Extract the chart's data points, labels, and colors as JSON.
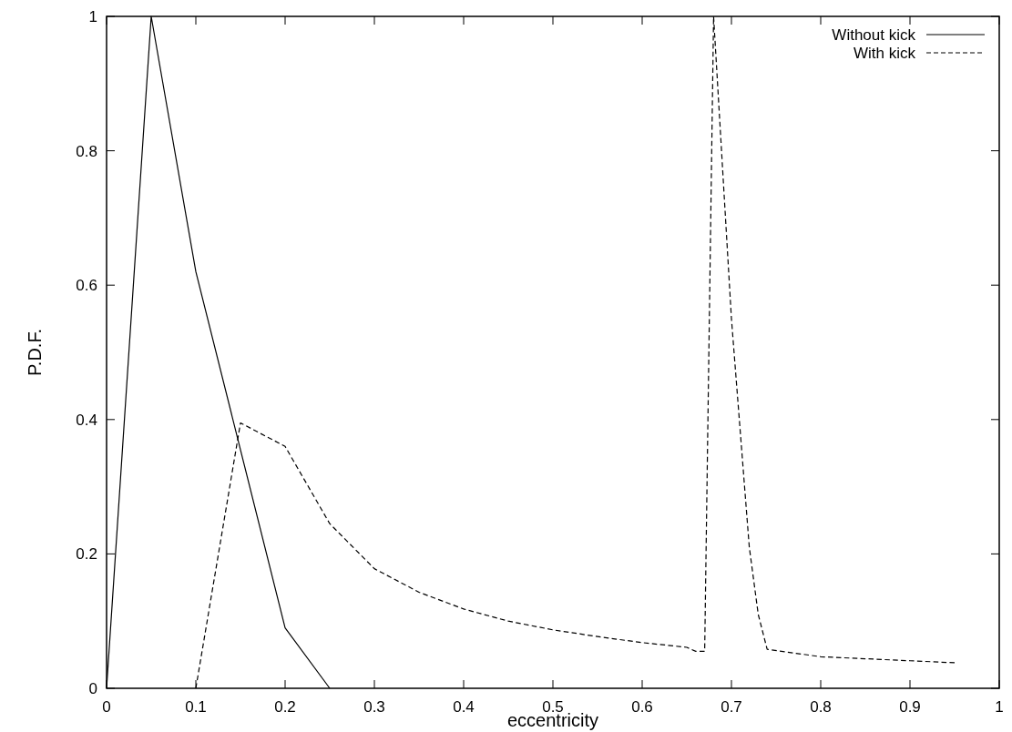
{
  "chart_data": {
    "type": "line",
    "xlabel": "eccentricity",
    "ylabel": "P.D.F.",
    "xlim": [
      0,
      1
    ],
    "ylim": [
      0,
      1
    ],
    "xticks": [
      0,
      0.1,
      0.2,
      0.3,
      0.4,
      0.5,
      0.6,
      0.7,
      0.8,
      0.9,
      1
    ],
    "yticks": [
      0,
      0.2,
      0.4,
      0.6,
      0.8,
      1
    ],
    "grid": false,
    "legend": "top right",
    "series": [
      {
        "name": "Without kick",
        "color": "#000000",
        "line_style": "solid",
        "x": [
          0,
          0.05,
          0.1,
          0.2,
          0.25
        ],
        "values": [
          0,
          1,
          0.62,
          0.09,
          0
        ]
      },
      {
        "name": "With kick",
        "color": "#000000",
        "line_style": "dashed",
        "x": [
          0.1,
          0.15,
          0.2,
          0.25,
          0.3,
          0.35,
          0.4,
          0.45,
          0.5,
          0.55,
          0.6,
          0.65,
          0.66,
          0.67,
          0.68,
          0.7,
          0.72,
          0.73,
          0.74,
          0.8,
          0.85,
          0.9,
          0.95
        ],
        "values": [
          0,
          0.395,
          0.36,
          0.245,
          0.178,
          0.143,
          0.118,
          0.1,
          0.087,
          0.077,
          0.068,
          0.061,
          0.055,
          0.055,
          1,
          0.55,
          0.21,
          0.11,
          0.058,
          0.047,
          0.044,
          0.041,
          0.038
        ]
      }
    ]
  }
}
